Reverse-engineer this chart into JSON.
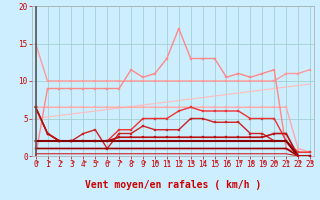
{
  "background_color": "#cceeff",
  "grid_color": "#99cccc",
  "xlabel": "Vent moyen/en rafales ( km/h )",
  "xlim": [
    0,
    23
  ],
  "ylim": [
    0,
    20
  ],
  "yticks": [
    0,
    5,
    10,
    15,
    20
  ],
  "xticks": [
    0,
    1,
    2,
    3,
    4,
    5,
    6,
    7,
    8,
    9,
    10,
    11,
    12,
    13,
    14,
    15,
    16,
    17,
    18,
    19,
    20,
    21,
    22,
    23
  ],
  "lines": [
    {
      "x": [
        0,
        1,
        2,
        3,
        4,
        5,
        6,
        7,
        8,
        9,
        10,
        11,
        12,
        13,
        14,
        15,
        16,
        17,
        18,
        19,
        20,
        21,
        22,
        23
      ],
      "y": [
        5,
        5.2,
        5.4,
        5.6,
        5.8,
        6.0,
        6.2,
        6.4,
        6.6,
        6.8,
        7.0,
        7.2,
        7.4,
        7.6,
        7.8,
        8.0,
        8.2,
        8.4,
        8.6,
        8.8,
        9.0,
        9.2,
        9.4,
        9.6
      ],
      "color": "#ffbbbb",
      "lw": 0.8,
      "marker": null,
      "ms": 0
    },
    {
      "x": [
        0,
        1,
        2,
        3,
        4,
        5,
        6,
        7,
        8,
        9,
        10,
        11,
        12,
        13,
        14,
        15,
        16,
        17,
        18,
        19,
        20,
        21,
        22,
        23
      ],
      "y": [
        15,
        10,
        10,
        10,
        10,
        10,
        10,
        10,
        10,
        10,
        10,
        10,
        10,
        10,
        10,
        10,
        10,
        10,
        10,
        10,
        10,
        11,
        11,
        11.5
      ],
      "color": "#ff9999",
      "lw": 1.0,
      "marker": "s",
      "ms": 1.5
    },
    {
      "x": [
        0,
        1,
        2,
        3,
        4,
        5,
        6,
        7,
        8,
        9,
        10,
        11,
        12,
        13,
        14,
        15,
        16,
        17,
        18,
        19,
        20,
        21,
        22,
        23
      ],
      "y": [
        6.5,
        6.5,
        6.5,
        6.5,
        6.5,
        6.5,
        6.5,
        6.5,
        6.5,
        6.5,
        6.5,
        6.5,
        6.5,
        6.5,
        6.5,
        6.5,
        6.5,
        6.5,
        6.5,
        6.5,
        6.5,
        6.5,
        1.0,
        0.5
      ],
      "color": "#ffaaaa",
      "lw": 1.0,
      "marker": "s",
      "ms": 1.5
    },
    {
      "x": [
        0,
        1,
        2,
        3,
        4,
        5,
        6,
        7,
        8,
        9,
        10,
        11,
        12,
        13,
        14,
        15,
        16,
        17,
        18,
        19,
        20,
        21,
        22,
        23
      ],
      "y": [
        0,
        9,
        9,
        9,
        9,
        9,
        9,
        9,
        11.5,
        10.5,
        11,
        13,
        17,
        13,
        13,
        13,
        10.5,
        11,
        10.5,
        11,
        11.5,
        1.0,
        0.5,
        0.5
      ],
      "color": "#ff8888",
      "lw": 1.0,
      "marker": "s",
      "ms": 1.5
    },
    {
      "x": [
        0,
        1,
        2,
        3,
        4,
        5,
        6,
        7,
        8,
        9,
        10,
        11,
        12,
        13,
        14,
        15,
        16,
        17,
        18,
        19,
        20,
        21,
        22,
        23
      ],
      "y": [
        6.5,
        3,
        2,
        2,
        2,
        2,
        2,
        3.5,
        3.5,
        5,
        5,
        5,
        6,
        6.5,
        6,
        6,
        6,
        6,
        5,
        5,
        5,
        2,
        0.5,
        0.5
      ],
      "color": "#ee3333",
      "lw": 1.0,
      "marker": "s",
      "ms": 1.5
    },
    {
      "x": [
        0,
        1,
        2,
        3,
        4,
        5,
        6,
        7,
        8,
        9,
        10,
        11,
        12,
        13,
        14,
        15,
        16,
        17,
        18,
        19,
        20,
        21,
        22,
        23
      ],
      "y": [
        6.5,
        3,
        2,
        2,
        3,
        3.5,
        1,
        3,
        3,
        4,
        3.5,
        3.5,
        3.5,
        5,
        5,
        4.5,
        4.5,
        4.5,
        3,
        3,
        2,
        2,
        0,
        0
      ],
      "color": "#cc2222",
      "lw": 1.0,
      "marker": "s",
      "ms": 1.5
    },
    {
      "x": [
        0,
        1,
        2,
        3,
        4,
        5,
        6,
        7,
        8,
        9,
        10,
        11,
        12,
        13,
        14,
        15,
        16,
        17,
        18,
        19,
        20,
        21,
        22,
        23
      ],
      "y": [
        6.5,
        3,
        2,
        2,
        2,
        2,
        2,
        2.5,
        2.5,
        2.5,
        2.5,
        2.5,
        2.5,
        2.5,
        2.5,
        2.5,
        2.5,
        2.5,
        2.5,
        2.5,
        3,
        3,
        0,
        0
      ],
      "color": "#bb1111",
      "lw": 1.2,
      "marker": "s",
      "ms": 1.5
    },
    {
      "x": [
        0,
        1,
        2,
        3,
        4,
        5,
        6,
        7,
        8,
        9,
        10,
        11,
        12,
        13,
        14,
        15,
        16,
        17,
        18,
        19,
        20,
        21,
        22,
        23
      ],
      "y": [
        2,
        2,
        2,
        2,
        2,
        2,
        2,
        2,
        2,
        2,
        2,
        2,
        2,
        2,
        2,
        2,
        2,
        2,
        2,
        2,
        2,
        2,
        0,
        0
      ],
      "color": "#880000",
      "lw": 1.5,
      "marker": null,
      "ms": 0
    },
    {
      "x": [
        0,
        1,
        2,
        3,
        4,
        5,
        6,
        7,
        8,
        9,
        10,
        11,
        12,
        13,
        14,
        15,
        16,
        17,
        18,
        19,
        20,
        21,
        22,
        23
      ],
      "y": [
        1,
        1,
        1,
        1,
        1,
        1,
        1,
        1,
        1,
        1,
        1,
        1,
        1,
        1,
        1,
        1,
        1,
        1,
        1,
        1,
        1,
        1,
        0,
        0
      ],
      "color": "#990000",
      "lw": 1.2,
      "marker": null,
      "ms": 0
    },
    {
      "x": [
        0,
        1,
        2,
        3,
        4,
        5,
        6,
        7,
        8,
        9,
        10,
        11,
        12,
        13,
        14,
        15,
        16,
        17,
        18,
        19,
        20,
        21,
        22,
        23
      ],
      "y": [
        0.3,
        0.3,
        0.3,
        0.3,
        0.3,
        0.3,
        0.3,
        0.3,
        0.3,
        0.3,
        0.3,
        0.3,
        0.3,
        0.3,
        0.3,
        0.3,
        0.3,
        0.3,
        0.3,
        0.3,
        0.3,
        0.3,
        0,
        0
      ],
      "color": "#cc2222",
      "lw": 0.8,
      "marker": null,
      "ms": 0
    }
  ],
  "tick_fontsize": 5.5,
  "label_fontsize": 7,
  "left_dark_line": true
}
